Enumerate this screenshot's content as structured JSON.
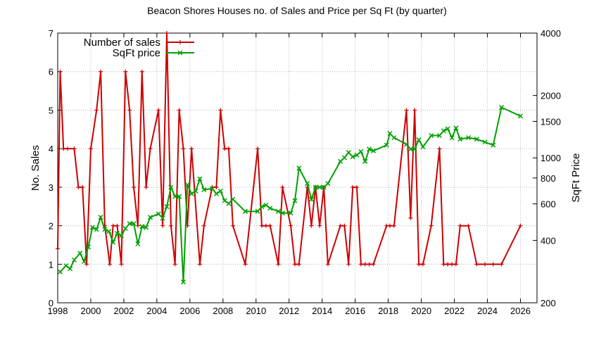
{
  "chart_data": {
    "type": "line",
    "title": "Beacon Shores Houses no. of Sales and Price per Sq Ft (by quarter)",
    "xlabel": "",
    "ylabel": "No. Sales",
    "y2label": "SqFt Price",
    "xlim": [
      1998,
      2027
    ],
    "ylim": [
      0,
      7
    ],
    "y2lim": [
      200,
      4000
    ],
    "y2scale": "log",
    "grid": true,
    "legend_placement": "top-left",
    "x_ticks": [
      "1998",
      "2000",
      "2002",
      "2004",
      "2006",
      "2008",
      "2010",
      "2012",
      "2014",
      "2016",
      "2018",
      "2020",
      "2022",
      "2024",
      "2026"
    ],
    "y_ticks": [
      "0",
      "1",
      "2",
      "3",
      "4",
      "5",
      "6",
      "7"
    ],
    "y2_ticks": [
      "200",
      "400",
      "600",
      "800",
      "1000",
      "1500",
      "2000",
      "4000"
    ],
    "series": [
      {
        "name": "Number of sales",
        "axis": "left",
        "color": "#cc0000",
        "x": [
          1998.0,
          1998.15,
          1998.35,
          1998.6,
          1999.0,
          1999.25,
          1999.5,
          1999.75,
          2000.0,
          2000.35,
          2000.6,
          2000.85,
          2001.15,
          2001.35,
          2001.6,
          2001.85,
          2002.1,
          2002.35,
          2002.6,
          2002.85,
          2003.1,
          2003.35,
          2003.6,
          2004.1,
          2004.35,
          2004.6,
          2004.85,
          2005.1,
          2005.35,
          2005.6,
          2005.85,
          2006.1,
          2006.6,
          2006.85,
          2007.35,
          2007.6,
          2007.85,
          2008.1,
          2008.35,
          2008.6,
          2009.35,
          2010.1,
          2010.35,
          2010.6,
          2010.85,
          2011.35,
          2011.6,
          2012.1,
          2012.35,
          2012.6,
          2013.1,
          2013.35,
          2013.6,
          2013.85,
          2014.1,
          2014.35,
          2015.1,
          2015.35,
          2015.6,
          2015.85,
          2016.1,
          2016.35,
          2016.6,
          2016.85,
          2017.1,
          2017.9,
          2018.1,
          2018.35,
          2019.1,
          2019.35,
          2019.6,
          2019.85,
          2020.1,
          2020.6,
          2021.1,
          2021.35,
          2021.6,
          2021.85,
          2022.1,
          2022.35,
          2022.85,
          2023.35,
          2023.85,
          2024.35,
          2024.85,
          2026.0
        ],
        "values": [
          1.4,
          6,
          4,
          4,
          4,
          3,
          3,
          1,
          4,
          5,
          6,
          2,
          1,
          2,
          2,
          1,
          6,
          5,
          3,
          2,
          6,
          3,
          4,
          5,
          2,
          7,
          2,
          1,
          5,
          4,
          2,
          4,
          1,
          2,
          3,
          3,
          5,
          4,
          4,
          2,
          1,
          4,
          2,
          2,
          2,
          1,
          3,
          2,
          1,
          1,
          3,
          2,
          3,
          2,
          3,
          1,
          2,
          2,
          1,
          3,
          3,
          1,
          1,
          1,
          1,
          2,
          2,
          2,
          5,
          2.2,
          5,
          1,
          1,
          2,
          4,
          1,
          1,
          1,
          1,
          2,
          2,
          1,
          1,
          1,
          1,
          2
        ]
      },
      {
        "name": "SqFt price",
        "axis": "right",
        "color": "#00a000",
        "x": [
          1998.15,
          1998.5,
          1998.75,
          1999.0,
          1999.35,
          1999.6,
          1999.85,
          2000.1,
          2000.35,
          2000.6,
          2000.85,
          2001.1,
          2001.35,
          2001.6,
          2001.85,
          2002.1,
          2002.35,
          2002.6,
          2002.85,
          2003.1,
          2003.35,
          2003.6,
          2004.1,
          2004.35,
          2004.6,
          2004.85,
          2005.1,
          2005.35,
          2005.6,
          2005.85,
          2006.1,
          2006.35,
          2006.6,
          2006.85,
          2007.35,
          2007.6,
          2007.85,
          2008.1,
          2008.35,
          2008.6,
          2009.35,
          2010.1,
          2010.35,
          2010.6,
          2010.85,
          2011.35,
          2011.6,
          2012.1,
          2012.35,
          2012.6,
          2013.1,
          2013.35,
          2013.6,
          2013.85,
          2014.1,
          2014.35,
          2015.1,
          2015.35,
          2015.6,
          2015.85,
          2016.1,
          2016.35,
          2016.6,
          2016.85,
          2017.1,
          2017.9,
          2018.1,
          2018.35,
          2019.1,
          2019.35,
          2019.6,
          2019.85,
          2020.1,
          2020.6,
          2021.1,
          2021.35,
          2021.6,
          2021.85,
          2022.1,
          2022.35,
          2022.85,
          2023.35,
          2023.85,
          2024.35,
          2024.85,
          2026.0
        ],
        "values": [
          282,
          302,
          292,
          322,
          347,
          317,
          372,
          462,
          452,
          517,
          452,
          442,
          392,
          432,
          422,
          457,
          482,
          482,
          385,
          467,
          462,
          517,
          537,
          512,
          582,
          722,
          652,
          652,
          252,
          742,
          672,
          692,
          792,
          702,
          712,
          672,
          692,
          622,
          602,
          632,
          552,
          552,
          582,
          592,
          572,
          552,
          542,
          542,
          622,
          892,
          752,
          632,
          722,
          722,
          722,
          752,
          962,
          1002,
          1062,
          1012,
          1032,
          1072,
          962,
          1102,
          1082,
          1152,
          1312,
          1252,
          1162,
          1102,
          1102,
          1222,
          1132,
          1282,
          1282,
          1352,
          1382,
          1252,
          1392,
          1232,
          1252,
          1232,
          1192,
          1152,
          1752,
          1592
        ]
      }
    ]
  }
}
